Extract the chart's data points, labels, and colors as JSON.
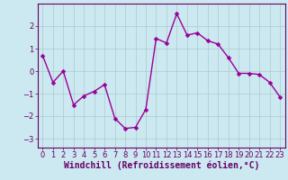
{
  "x": [
    0,
    1,
    2,
    3,
    4,
    5,
    6,
    7,
    8,
    9,
    10,
    11,
    12,
    13,
    14,
    15,
    16,
    17,
    18,
    19,
    20,
    21,
    22,
    23
  ],
  "y": [
    0.7,
    -0.5,
    0.0,
    -1.5,
    -1.1,
    -0.9,
    -0.6,
    -2.1,
    -2.55,
    -2.5,
    -1.7,
    1.45,
    1.25,
    2.55,
    1.6,
    1.7,
    1.35,
    1.2,
    0.6,
    -0.1,
    -0.1,
    -0.15,
    -0.5,
    -1.15
  ],
  "line_color": "#990099",
  "marker": "D",
  "marker_size": 2.5,
  "bg_color": "#cce8f0",
  "grid_color": "#aacccc",
  "xlabel": "Windchill (Refroidissement éolien,°C)",
  "xlabel_color": "#660066",
  "ylim": [
    -3.4,
    3.0
  ],
  "xlim": [
    -0.5,
    23.5
  ],
  "yticks": [
    -3,
    -2,
    -1,
    0,
    1,
    2
  ],
  "xticks": [
    0,
    1,
    2,
    3,
    4,
    5,
    6,
    7,
    8,
    9,
    10,
    11,
    12,
    13,
    14,
    15,
    16,
    17,
    18,
    19,
    20,
    21,
    22,
    23
  ],
  "tick_color": "#660066",
  "tick_fontsize": 6.0,
  "xlabel_fontsize": 7.0,
  "spine_color": "#660066",
  "line_width": 1.0
}
